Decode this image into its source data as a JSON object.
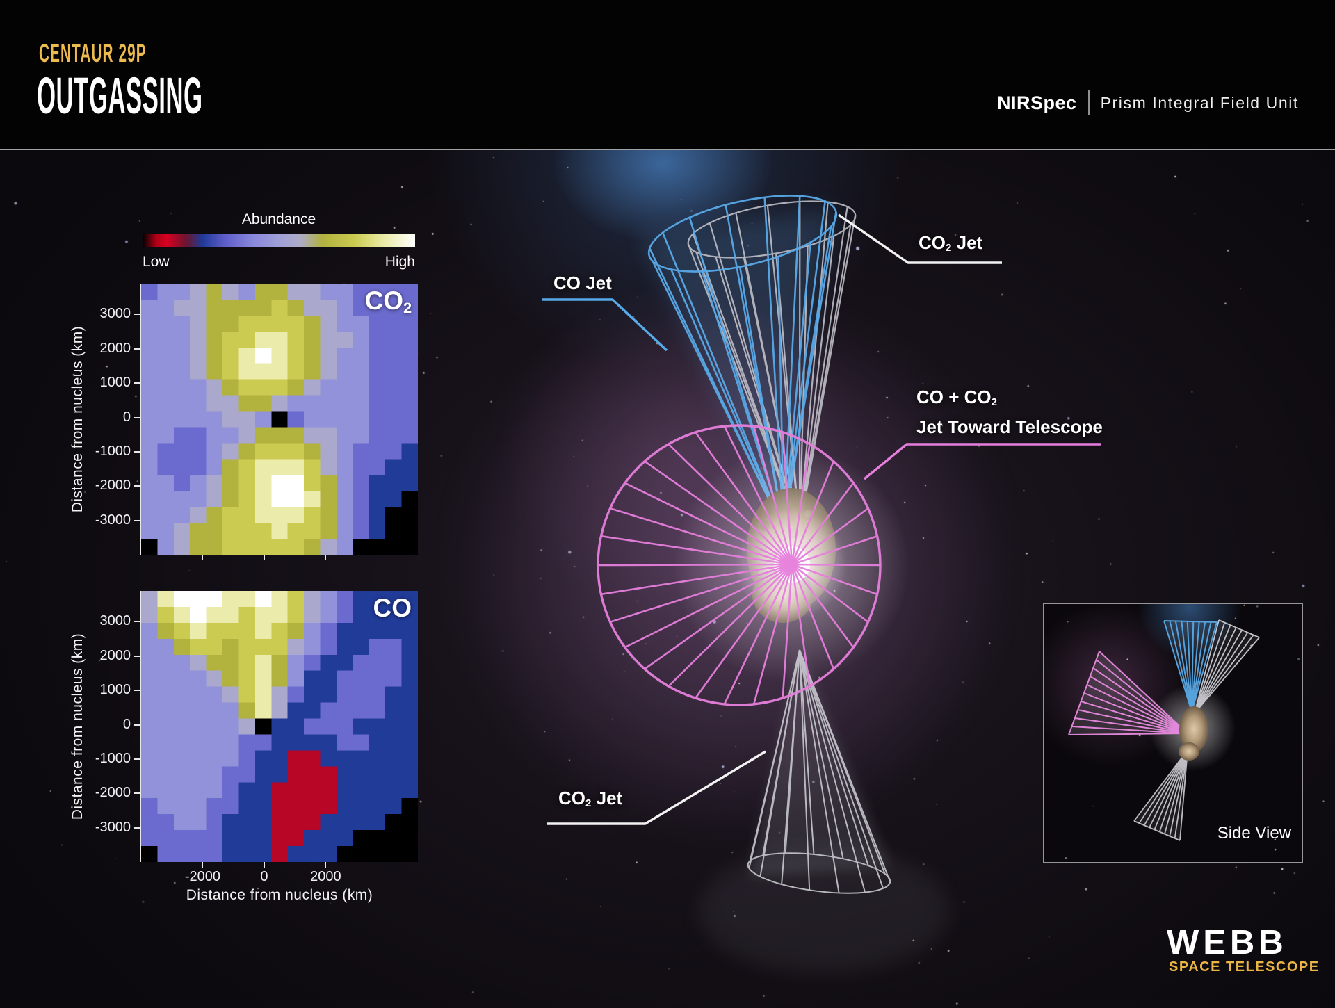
{
  "header": {
    "kicker": "CENTAUR 29P",
    "title": "OUTGASSING",
    "instrument": "NIRSpec",
    "instrument_detail": "Prism Integral Field Unit"
  },
  "colorbar": {
    "title": "Abundance",
    "low": "Low",
    "high": "High",
    "stops": [
      [
        0,
        "#000000"
      ],
      [
        0.05,
        "#b00016"
      ],
      [
        0.09,
        "#d80021"
      ],
      [
        0.16,
        "#6b1530"
      ],
      [
        0.22,
        "#1f3a98"
      ],
      [
        0.3,
        "#5d5dc9"
      ],
      [
        0.4,
        "#8786dc"
      ],
      [
        0.5,
        "#a0a0d8"
      ],
      [
        0.58,
        "#aeacc6"
      ],
      [
        0.66,
        "#b1b13e"
      ],
      [
        0.78,
        "#cbcb52"
      ],
      [
        0.88,
        "#e9e9a4"
      ],
      [
        1,
        "#ffffff"
      ]
    ]
  },
  "maps": {
    "y_axis_label": "Distance from nucleus (km)",
    "x_axis_label": "Distance from nucleus (km)",
    "y_ticks": [
      "3000",
      "2000",
      "1000",
      "0",
      "-1000",
      "-2000",
      "-3000"
    ],
    "x_ticks": [
      "-2000",
      "0",
      "2000"
    ],
    "co2_badge": {
      "main": "CO",
      "sub": "2"
    },
    "co_badge": {
      "main": "CO",
      "sub": ""
    }
  },
  "diagram": {
    "labels": {
      "co_jet": "CO Jet",
      "co2_jet_top_main": "CO",
      "co2_jet_top_sub": "2",
      "co2_jet_top_rest": " Jet",
      "combined_line1_main": "CO + CO",
      "combined_line1_sub": "2",
      "combined_line2": "Jet Toward Telescope",
      "co2_jet_bottom_main": "CO",
      "co2_jet_bottom_sub": "2",
      "co2_jet_bottom_rest": " Jet"
    },
    "colors": {
      "blue": "#58a9e8",
      "pink": "#e67fdc",
      "gray": "#c8c8cf",
      "leader_white": "#f2f2f2"
    }
  },
  "inset": {
    "caption": "Side View"
  },
  "logo": {
    "wordmark": "WEBB",
    "tagline": "SPACE TELESCOPE",
    "tagline_color": "#eab544"
  },
  "chart_data": [
    {
      "type": "heatmap",
      "title": "CO2 abundance map",
      "xlabel": "Distance from nucleus (km)",
      "ylabel": "Distance from nucleus (km)",
      "x_ticks": [
        -2000,
        0,
        2000
      ],
      "y_ticks": [
        3000,
        2000,
        1000,
        0,
        -1000,
        -2000,
        -3000
      ],
      "x_range_km": [
        -4000,
        5000
      ],
      "y_range_km": [
        -4000,
        3900
      ],
      "legend": "Abundance: Low (black/red/blue) to High (yellow/white)",
      "grid_levels_0to9": [
        "34456546655443333",
        "44556666765543333",
        "44456677776544333",
        "44456778876554333",
        "44456789876544333",
        "44456788876544333",
        "44445677765444333",
        "44445566544444333",
        "44444554034444333",
        "44334456665544333",
        "43334567776543332",
        "43334678887543322",
        "44345678997643222",
        "44445678998643220",
        "44456778887643200",
        "44566777877643200",
        "04566777776540000"
      ]
    },
    {
      "type": "heatmap",
      "title": "CO abundance map",
      "xlabel": "Distance from nucleus (km)",
      "ylabel": "Distance from nucleus (km)",
      "x_ticks": [
        -2000,
        0,
        2000
      ],
      "y_ticks": [
        3000,
        2000,
        1000,
        0,
        -1000,
        -2000,
        -3000
      ],
      "x_range_km": [
        -4000,
        5000
      ],
      "y_range_km": [
        -4000,
        3900
      ],
      "legend": "Abundance: Low (black/red/blue) to High (yellow/white)",
      "grid_levels_0to9": [
        "58999889875432222",
        "57898878875432222",
        "46787778764322222",
        "44677677754322332",
        "44456678643223332",
        "44445678642233332",
        "44444578532233322",
        "44444468522333322",
        "44444450223332222",
        "44444433222233222",
        "44444432211222222",
        "44444332211122222",
        "44444322111122222",
        "34443322111122220",
        "33443222111222200",
        "33333222112220000",
        "03333222122200000"
      ]
    }
  ]
}
